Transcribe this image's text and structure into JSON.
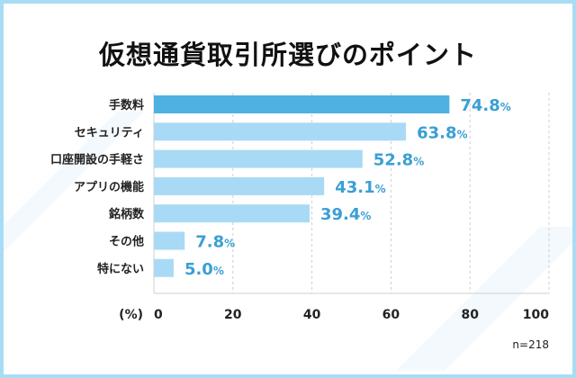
{
  "chart_data": {
    "type": "bar",
    "orientation": "horizontal",
    "title": "仮想通貨取引所選びのポイント",
    "categories": [
      "手数料",
      "セキュリティ",
      "口座開設の手軽さ",
      "アプリの機能",
      "銘柄数",
      "その他",
      "特にない"
    ],
    "values": [
      74.8,
      63.8,
      52.8,
      43.1,
      39.4,
      7.8,
      5.0
    ],
    "value_suffix": "%",
    "xlabel": "(%)",
    "xlim": [
      0,
      100
    ],
    "xticks": [
      0,
      20,
      40,
      60,
      80,
      100
    ],
    "grid": true,
    "note": "n=218",
    "colors": {
      "highlight": "#4fb1e0",
      "bar": "#a9daf5",
      "value_text": "#3a9fd4"
    }
  }
}
